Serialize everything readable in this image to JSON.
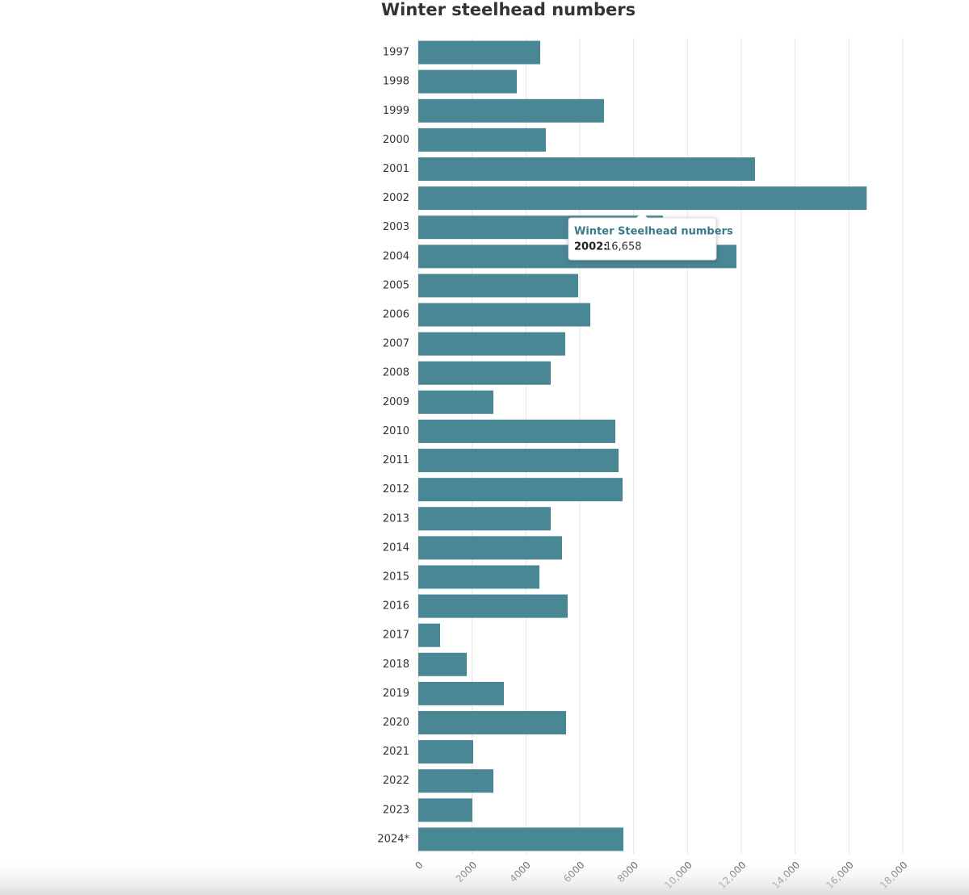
{
  "chart_data": {
    "type": "bar",
    "orientation": "horizontal",
    "title": "Winter steelhead numbers",
    "categories": [
      "1997",
      "1998",
      "1999",
      "2000",
      "2001",
      "2002",
      "2003",
      "2004",
      "2005",
      "2006",
      "2007",
      "2008",
      "2009",
      "2010",
      "2011",
      "2012",
      "2013",
      "2014",
      "2015",
      "2016",
      "2017",
      "2018",
      "2019",
      "2020",
      "2021",
      "2022",
      "2023",
      "2024*"
    ],
    "values": [
      4530,
      3660,
      6900,
      4740,
      12510,
      16658,
      9090,
      11820,
      5940,
      6390,
      5460,
      4920,
      2790,
      7320,
      7440,
      7590,
      4920,
      5340,
      4500,
      5550,
      810,
      1800,
      3180,
      5490,
      2040,
      2790,
      2010,
      7620
    ],
    "color": "#4a8795",
    "xlim": [
      0,
      18000
    ],
    "xticks": [
      0,
      2000,
      4000,
      6000,
      8000,
      {
        "value": 10000,
        "label": "10,000"
      },
      {
        "value": 12000,
        "label": "12,000"
      },
      {
        "value": 14000,
        "label": "14,000"
      },
      {
        "value": 16000,
        "label": "16,000"
      },
      {
        "value": 18000,
        "label": "18,000"
      }
    ],
    "grid": true,
    "tooltip": {
      "title": "Winter Steelhead numbers",
      "label": "2002:",
      "value_label": "16,658"
    }
  }
}
